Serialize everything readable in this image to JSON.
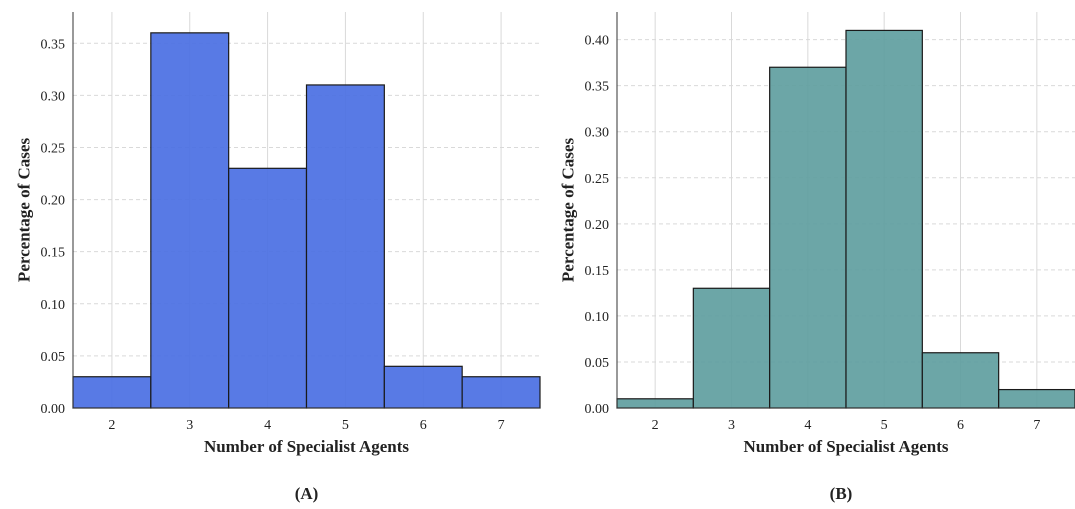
{
  "chart_data": [
    {
      "type": "bar",
      "panel_label": "(A)",
      "xlabel": "Number of Specialist Agents",
      "ylabel": "Percentage of Cases",
      "categories": [
        "2",
        "3",
        "4",
        "5",
        "6",
        "7"
      ],
      "values": [
        0.03,
        0.36,
        0.23,
        0.31,
        0.04,
        0.03
      ],
      "ylim": [
        0,
        0.38
      ],
      "yticks": [
        "0.00",
        "0.05",
        "0.10",
        "0.15",
        "0.20",
        "0.25",
        "0.30",
        "0.35"
      ],
      "bar_color": "#4a6fe3",
      "grid": true
    },
    {
      "type": "bar",
      "panel_label": "(B)",
      "xlabel": "Number of Specialist Agents",
      "ylabel": "Percentage of Cases",
      "categories": [
        "2",
        "3",
        "4",
        "5",
        "6",
        "7"
      ],
      "values": [
        0.01,
        0.13,
        0.37,
        0.41,
        0.06,
        0.02
      ],
      "ylim": [
        0,
        0.43
      ],
      "yticks": [
        "0.00",
        "0.05",
        "0.10",
        "0.15",
        "0.20",
        "0.25",
        "0.30",
        "0.35",
        "0.40"
      ],
      "bar_color": "#5f9ea0",
      "grid": true
    }
  ]
}
